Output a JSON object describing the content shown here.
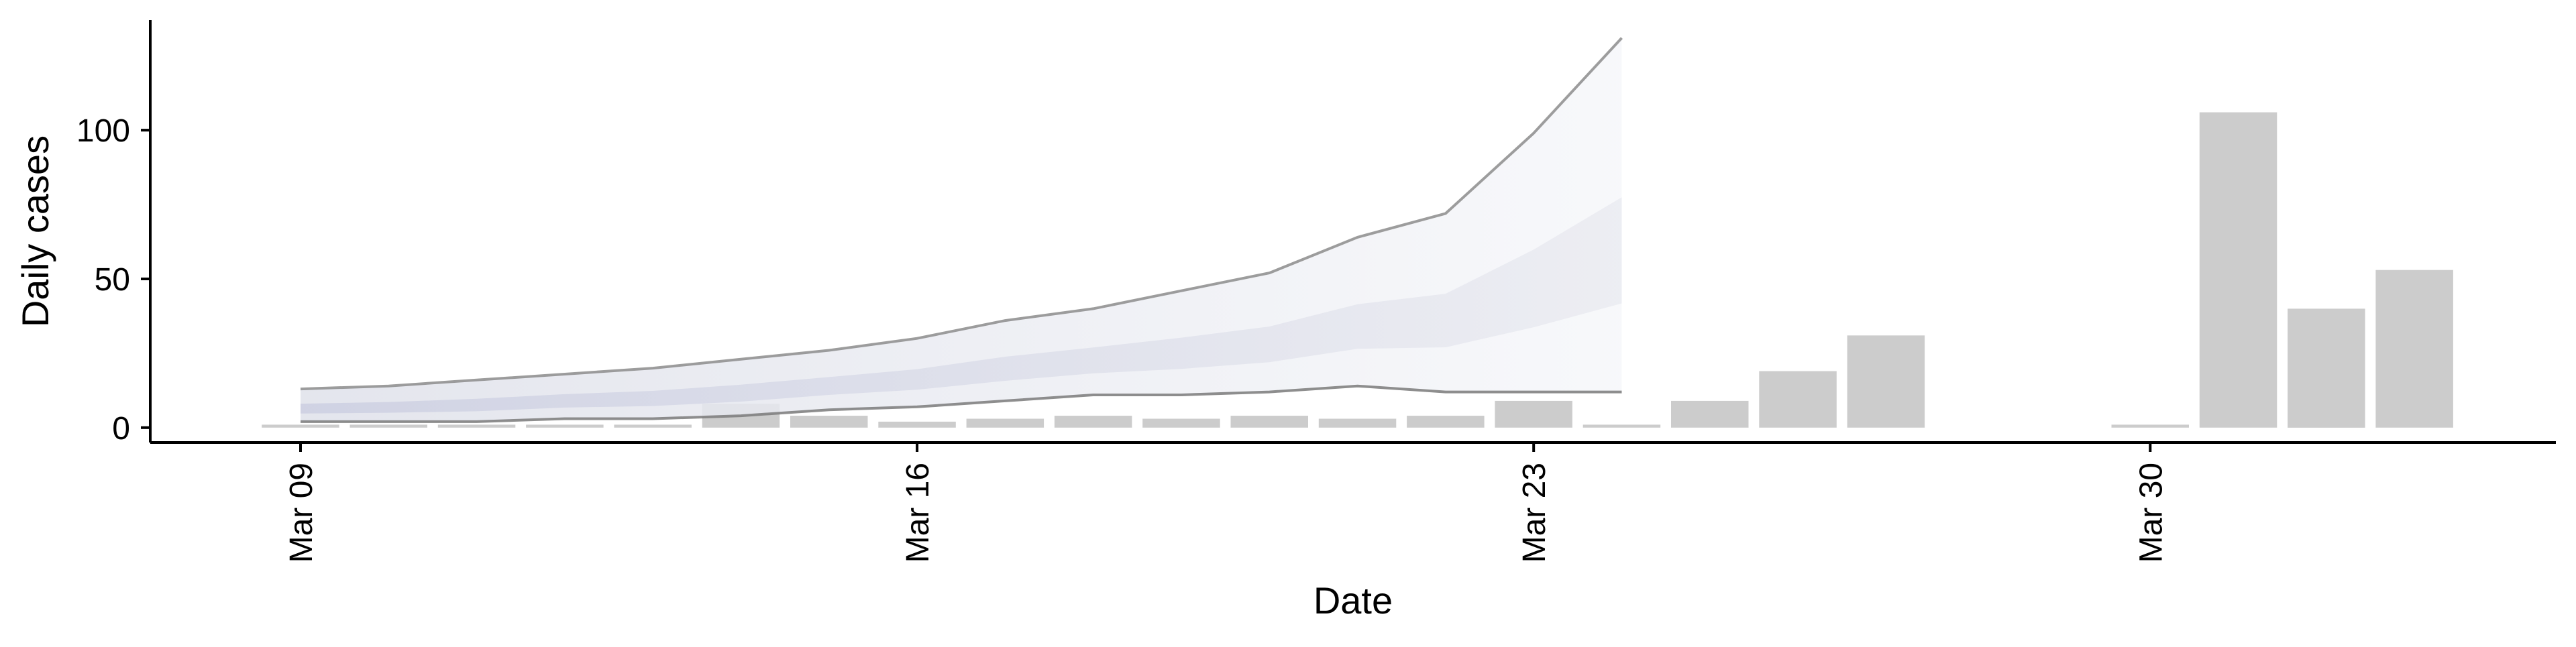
{
  "chart_data": {
    "type": "bar",
    "xlabel": "Date",
    "ylabel": "Daily cases",
    "xlim": [
      "2020-03-09",
      "2020-04-03"
    ],
    "ylim": [
      -5,
      137
    ],
    "x_ticks": [
      {
        "date": "2020-03-09",
        "label": "Mar 09"
      },
      {
        "date": "2020-03-16",
        "label": "Mar 16"
      },
      {
        "date": "2020-03-23",
        "label": "Mar 23"
      },
      {
        "date": "2020-03-30",
        "label": "Mar 30"
      }
    ],
    "y_ticks": [
      0,
      50,
      100
    ],
    "grid": false,
    "legend": "none",
    "bar_color": "#cccccc",
    "series": [
      {
        "type": "bar",
        "x": [
          "2020-03-09",
          "2020-03-10",
          "2020-03-11",
          "2020-03-12",
          "2020-03-13",
          "2020-03-14",
          "2020-03-15",
          "2020-03-16",
          "2020-03-17",
          "2020-03-18",
          "2020-03-19",
          "2020-03-20",
          "2020-03-21",
          "2020-03-22",
          "2020-03-23",
          "2020-03-24",
          "2020-03-25",
          "2020-03-26",
          "2020-03-27",
          "2020-03-30",
          "2020-03-31",
          "2020-04-01",
          "2020-04-02"
        ],
        "y": [
          1,
          1,
          1,
          1,
          1,
          8,
          4,
          2,
          3,
          4,
          3,
          4,
          3,
          4,
          9,
          1,
          9,
          19,
          31,
          1,
          106,
          40,
          53
        ]
      },
      {
        "type": "area",
        "color": "#dcdde8",
        "x": [
          "2020-03-09",
          "2020-03-10",
          "2020-03-11",
          "2020-03-12",
          "2020-03-13",
          "2020-03-14",
          "2020-03-15",
          "2020-03-16",
          "2020-03-17",
          "2020-03-18",
          "2020-03-19",
          "2020-03-20",
          "2020-03-21",
          "2020-03-22",
          "2020-03-23",
          "2020-03-24"
        ],
        "lower": [
          2,
          2,
          2,
          3,
          3,
          4,
          6,
          7,
          9,
          11,
          11,
          12,
          14,
          12,
          12,
          12
        ],
        "upper": [
          13,
          14,
          16,
          18,
          20,
          23,
          26,
          30,
          36,
          40,
          46,
          52,
          64,
          72,
          99,
          131
        ]
      }
    ]
  }
}
